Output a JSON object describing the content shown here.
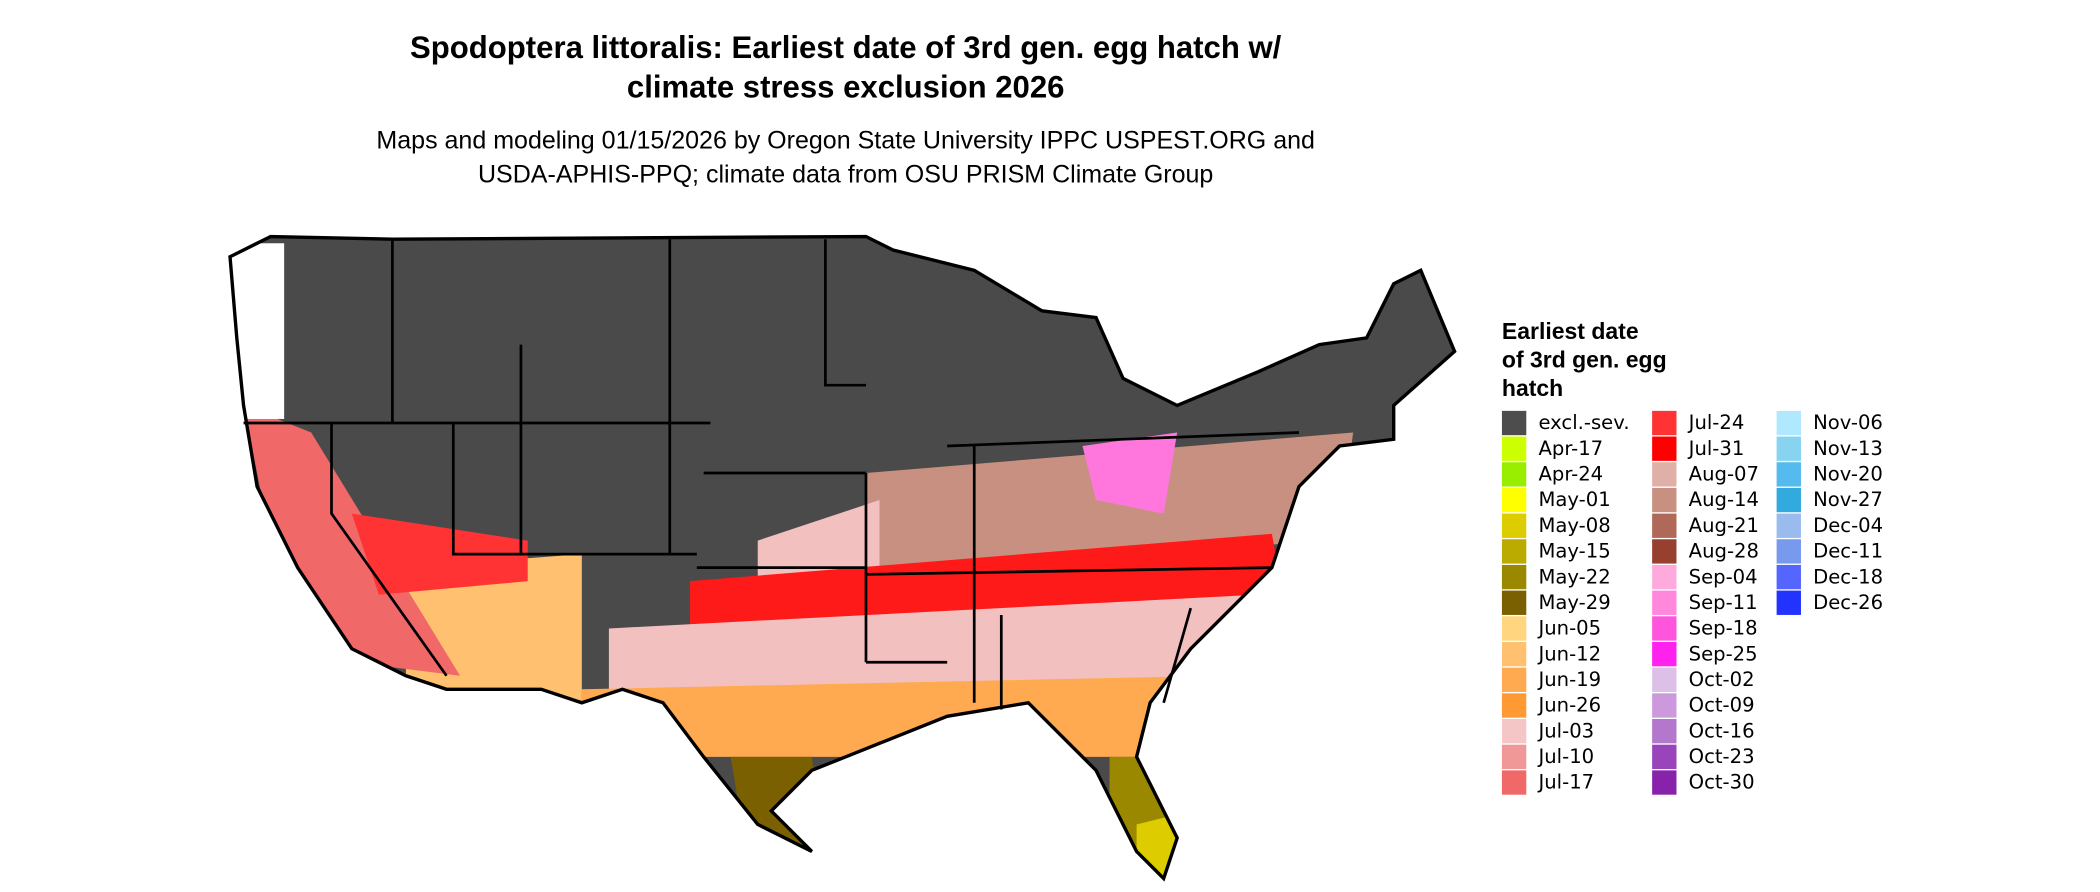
{
  "title": {
    "lines": [
      "Spodoptera littoralis: Earliest date of 3rd gen. egg hatch w/",
      "climate stress exclusion 2026"
    ]
  },
  "subtitle": {
    "lines": [
      "Maps and modeling 01/15/2026 by Oregon State University IPPC USPEST.ORG and",
      "USDA-APHIS-PPQ; climate data from OSU PRISM Climate Group"
    ]
  },
  "legend": {
    "title": {
      "lines": [
        "Earliest date",
        "of 3rd gen. egg",
        "hatch"
      ]
    },
    "items": [
      {
        "label": "excl.-sev.",
        "color": "#4d4d4d"
      },
      {
        "label": "Apr-17",
        "color": "#ccff00"
      },
      {
        "label": "Apr-24",
        "color": "#99ee00"
      },
      {
        "label": "May-01",
        "color": "#ffff00"
      },
      {
        "label": "May-08",
        "color": "#ddcc00"
      },
      {
        "label": "May-15",
        "color": "#bbaa00"
      },
      {
        "label": "May-22",
        "color": "#998800"
      },
      {
        "label": "May-29",
        "color": "#7a6000"
      },
      {
        "label": "Jun-05",
        "color": "#ffd580"
      },
      {
        "label": "Jun-12",
        "color": "#ffc070"
      },
      {
        "label": "Jun-19",
        "color": "#ffaa50"
      },
      {
        "label": "Jun-26",
        "color": "#ff9933"
      },
      {
        "label": "Jul-03",
        "color": "#f5c6c6"
      },
      {
        "label": "Jul-10",
        "color": "#f09898"
      },
      {
        "label": "Jul-17",
        "color": "#f06868"
      },
      {
        "label": "Jul-24",
        "color": "#ff3333"
      },
      {
        "label": "Jul-31",
        "color": "#ff0000"
      },
      {
        "label": "Aug-07",
        "color": "#e0b0a8"
      },
      {
        "label": "Aug-14",
        "color": "#c89080"
      },
      {
        "label": "Aug-21",
        "color": "#b06858"
      },
      {
        "label": "Aug-28",
        "color": "#984030"
      },
      {
        "label": "Sep-04",
        "color": "#ffaadd"
      },
      {
        "label": "Sep-11",
        "color": "#ff88dd"
      },
      {
        "label": "Sep-18",
        "color": "#ff55dd"
      },
      {
        "label": "Sep-25",
        "color": "#ff22ee"
      },
      {
        "label": "Oct-02",
        "color": "#ddc0e8"
      },
      {
        "label": "Oct-09",
        "color": "#cc99dd"
      },
      {
        "label": "Oct-16",
        "color": "#b377cc"
      },
      {
        "label": "Oct-23",
        "color": "#9944bb"
      },
      {
        "label": "Oct-30",
        "color": "#8822aa"
      },
      {
        "label": "Nov-06",
        "color": "#b0e8ff"
      },
      {
        "label": "Nov-13",
        "color": "#88d4f0"
      },
      {
        "label": "Nov-20",
        "color": "#55bbee"
      },
      {
        "label": "Nov-27",
        "color": "#33aadd"
      },
      {
        "label": "Dec-04",
        "color": "#99bbee"
      },
      {
        "label": "Dec-11",
        "color": "#7799ee"
      },
      {
        "label": "Dec-18",
        "color": "#5566ff"
      },
      {
        "label": "Dec-26",
        "color": "#2233ff"
      }
    ]
  }
}
